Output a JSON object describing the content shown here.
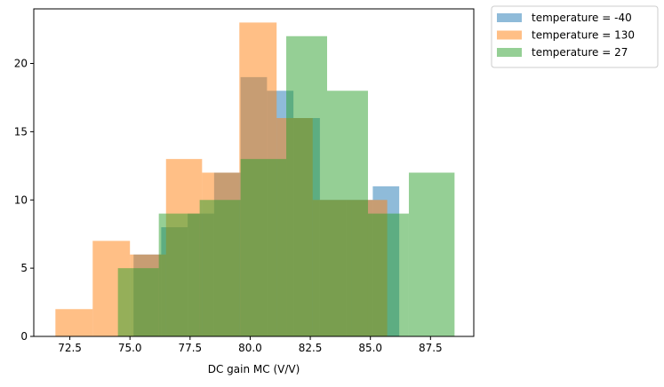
{
  "chart_data": {
    "type": "histogram",
    "xlabel": "DC gain MC (V/V)",
    "ylabel": "",
    "title": "",
    "xlim": [
      71.0,
      89.3
    ],
    "ylim": [
      0,
      24
    ],
    "xticks": [
      72.5,
      75.0,
      77.5,
      80.0,
      82.5,
      85.0,
      87.5
    ],
    "xtick_labels": [
      "72.5",
      "75.0",
      "77.5",
      "80.0",
      "82.5",
      "85.0",
      "87.5"
    ],
    "yticks": [
      0,
      5,
      10,
      15,
      20
    ],
    "ytick_labels": [
      "0",
      "5",
      "10",
      "15",
      "20"
    ],
    "legend_position": "outside-upper-right",
    "series": [
      {
        "name": "temperature = -40",
        "color": "#1f77b4",
        "opacity": 0.5,
        "bin_edges": [
          75.15,
          76.3,
          77.4,
          78.5,
          79.6,
          80.7,
          81.8,
          82.9,
          84.0,
          85.1,
          86.2
        ],
        "counts": [
          6,
          8,
          9,
          12,
          19,
          18,
          16,
          10,
          10,
          11
        ]
      },
      {
        "name": "temperature = 130",
        "color": "#ff7f0e",
        "opacity": 0.5,
        "bin_edges": [
          71.9,
          73.45,
          75.0,
          76.5,
          78.0,
          79.55,
          81.1,
          82.6,
          84.2,
          85.7,
          87.25
        ],
        "counts": [
          2,
          7,
          6,
          13,
          12,
          23,
          16,
          10,
          10,
          0
        ]
      },
      {
        "name": "temperature = 27",
        "color": "#2ca02c",
        "opacity": 0.5,
        "bin_edges": [
          74.5,
          76.2,
          77.9,
          79.6,
          81.5,
          83.2,
          84.9,
          86.6,
          88.5
        ],
        "counts": [
          5,
          9,
          10,
          13,
          22,
          18,
          9,
          12
        ]
      }
    ]
  }
}
